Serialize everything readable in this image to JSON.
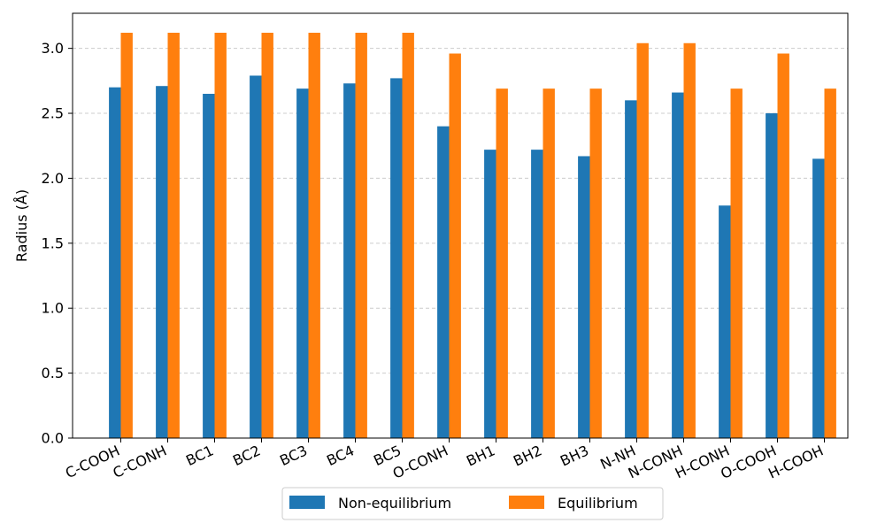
{
  "chart_data": {
    "type": "bar",
    "ylabel": "Radius (Å)",
    "xlabel": "",
    "ylim": [
      0,
      3.27
    ],
    "yticks": [
      "0.0",
      "0.5",
      "1.0",
      "1.5",
      "2.0",
      "2.5",
      "3.0"
    ],
    "grid": "horizontal dashed",
    "legend_position": "bottom-center",
    "categories": [
      "C-COOH",
      "C-CONH",
      "BC1",
      "BC2",
      "BC3",
      "BC4",
      "BC5",
      "O-CONH",
      "BH1",
      "BH2",
      "BH3",
      "N-NH",
      "N-CONH",
      "H-CONH",
      "O-COOH",
      "H-COOH"
    ],
    "series": [
      {
        "name": "Non-equilibrium",
        "color": "#1f77b4",
        "values": [
          2.7,
          2.71,
          2.65,
          2.79,
          2.69,
          2.73,
          2.77,
          2.4,
          2.22,
          2.22,
          2.17,
          2.6,
          2.66,
          1.79,
          2.5,
          2.15
        ]
      },
      {
        "name": "Equilibrium",
        "color": "#ff7f0e",
        "values": [
          3.12,
          3.12,
          3.12,
          3.12,
          3.12,
          3.12,
          3.12,
          2.96,
          2.69,
          2.69,
          2.69,
          3.04,
          3.04,
          2.69,
          2.96,
          2.69
        ]
      }
    ]
  }
}
